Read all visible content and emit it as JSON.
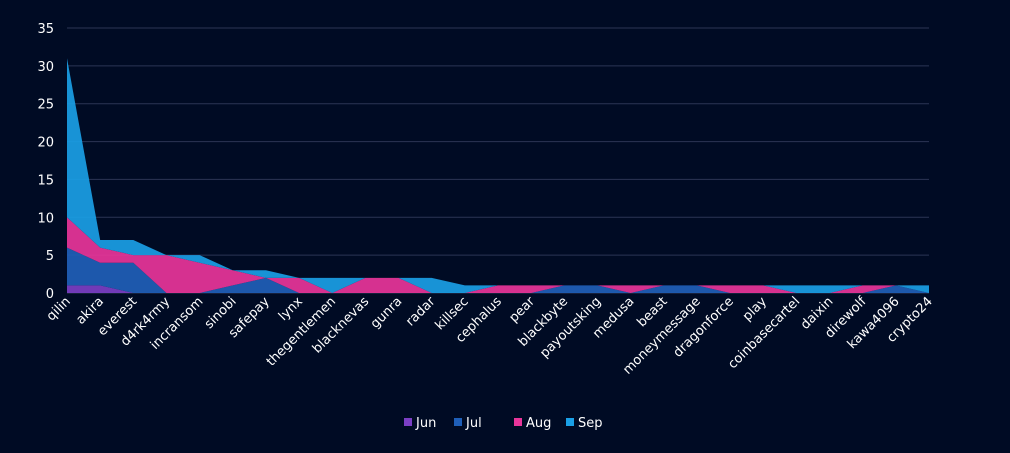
{
  "chart_data": {
    "type": "area",
    "title": "",
    "xlabel": "",
    "ylabel": "",
    "ylim": [
      0,
      35
    ],
    "yticks": [
      "0",
      "5",
      "10",
      "15",
      "20",
      "25",
      "30",
      "35"
    ],
    "grid": "horizontal",
    "legend_position": "bottom-center",
    "categories": [
      "qilin",
      "akira",
      "everest",
      "d4rk4rmy",
      "incransom",
      "sinobi",
      "safepay",
      "lynx",
      "thegentlemen",
      "blacknevas",
      "gunra",
      "radar",
      "killsec",
      "cephalus",
      "pear",
      "blackbyte",
      "payoutsking",
      "medusa",
      "beast",
      "moneymessage",
      "dragonforce",
      "play",
      "coinbasecartel",
      "daixin",
      "direwolf",
      "kawa4096",
      "crypto24"
    ],
    "series": [
      {
        "name": "Jun",
        "color": "#7b3fc4",
        "values": [
          1,
          1,
          0,
          0,
          0,
          0,
          0,
          0,
          0,
          0,
          0,
          0,
          0,
          0,
          0,
          0,
          0,
          0,
          0,
          0,
          0,
          0,
          0,
          0,
          0,
          0,
          0
        ]
      },
      {
        "name": "Jul",
        "color": "#1f5fb8",
        "values": [
          5,
          3,
          4,
          0,
          0,
          1,
          2,
          0,
          0,
          0,
          0,
          0,
          0,
          0,
          0,
          1,
          1,
          0,
          1,
          1,
          0,
          0,
          0,
          0,
          0,
          1,
          0
        ]
      },
      {
        "name": "Aug",
        "color": "#e8359a",
        "values": [
          4,
          2,
          1,
          5,
          4,
          2,
          0,
          2,
          0,
          2,
          2,
          0,
          0,
          1,
          1,
          0,
          0,
          1,
          0,
          0,
          1,
          1,
          0,
          0,
          1,
          0,
          0
        ]
      },
      {
        "name": "Sep",
        "color": "#1aa0e6",
        "values": [
          21,
          1,
          2,
          0,
          1,
          0,
          1,
          0,
          2,
          0,
          0,
          2,
          1,
          0,
          0,
          0,
          0,
          0,
          0,
          0,
          0,
          0,
          1,
          1,
          0,
          0,
          1
        ]
      }
    ]
  }
}
